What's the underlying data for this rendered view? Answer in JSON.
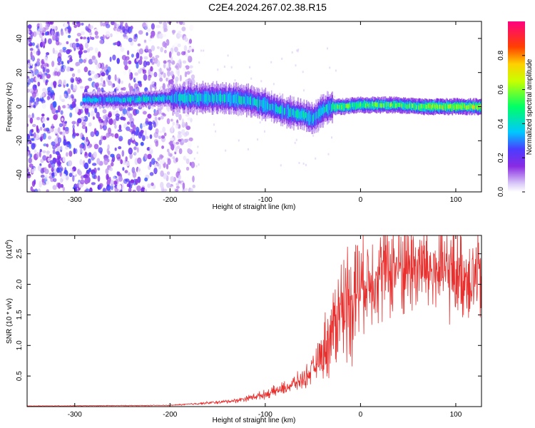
{
  "title": "C2E4.2024.267.02.38.R15",
  "chart_data": [
    {
      "type": "heatmap",
      "xlabel": "Height of straight line (km)",
      "ylabel": "Frequency (Hz)",
      "xlim": [
        -350,
        127
      ],
      "ylim": [
        -50,
        50
      ],
      "xticks": [
        -300,
        -200,
        -100,
        0,
        100
      ],
      "yticks": [
        -40,
        -20,
        0,
        20,
        40
      ],
      "colorbar": {
        "label": "Normalized spectral amplitude",
        "range": [
          0.0,
          1.0
        ],
        "ticks": [
          "0.0",
          "0.2",
          "0.4",
          "0.6",
          "0.8"
        ],
        "colormap": [
          "#ffffff",
          "#8a2be2",
          "#4b3cff",
          "#00c8ff",
          "#00ff66",
          "#ffff00",
          "#ff8000",
          "#ff0000",
          "#ff0080"
        ]
      },
      "signal_center_hz": {
        "x": [
          -290,
          -250,
          -200,
          -180,
          -150,
          -120,
          -100,
          -80,
          -60,
          -50,
          -40,
          -30,
          -20,
          0,
          20,
          40,
          60,
          80,
          100,
          127
        ],
        "y": [
          4,
          4,
          5,
          5,
          5,
          4,
          1,
          -3,
          -5,
          -7,
          -2,
          0,
          0,
          1,
          1,
          1,
          0,
          0,
          0,
          0
        ]
      }
    },
    {
      "type": "line",
      "xlabel": "Height of straight line (km)",
      "ylabel": "SNR (10 * v/v)",
      "yscale_label": "(x10",
      "yscale_exp": "4",
      "xlim": [
        -350,
        127
      ],
      "ylim": [
        0.0,
        2.8
      ],
      "xticks": [
        -300,
        -200,
        -100,
        0,
        100
      ],
      "yticks": [
        "0.5",
        "1.0",
        "1.5",
        "2.0",
        "2.5"
      ],
      "color": "#e8302e",
      "envelope": {
        "x": [
          -350,
          -200,
          -170,
          -150,
          -130,
          -100,
          -80,
          -60,
          -50,
          -40,
          -30,
          -25,
          -20,
          -10,
          0,
          20,
          40,
          60,
          80,
          100,
          127
        ],
        "y": [
          0.01,
          0.02,
          0.05,
          0.07,
          0.1,
          0.2,
          0.3,
          0.45,
          0.6,
          0.9,
          1.2,
          1.5,
          1.6,
          1.8,
          2.0,
          2.2,
          2.3,
          2.3,
          2.2,
          2.2,
          2.1
        ]
      }
    }
  ]
}
